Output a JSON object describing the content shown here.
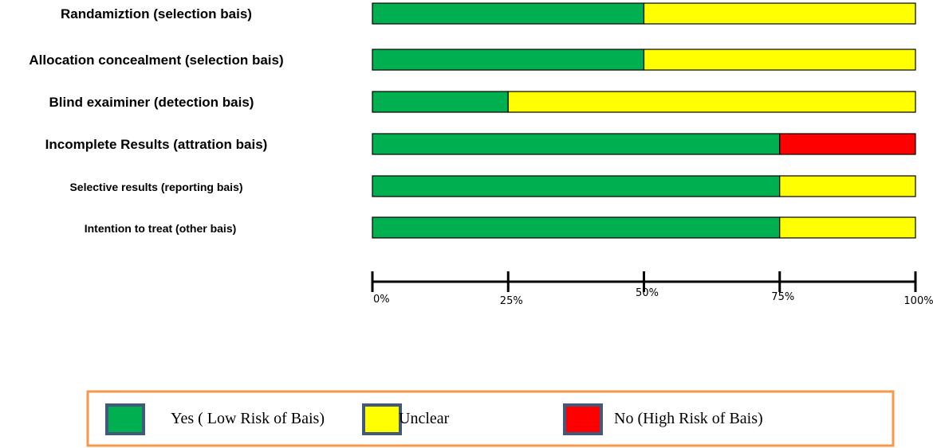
{
  "chart_data": {
    "type": "bar",
    "orientation": "horizontal",
    "stacked": true,
    "categories": [
      "Randamiztion (selection bais)",
      "Allocation concealment (selection bais)",
      "Blind exaiminer (detection bais)",
      "Incomplete Results (attration bais)",
      "Selective results (reporting bais)",
      "Intention to treat (other bais)"
    ],
    "series": [
      {
        "name": "Yes ( Low Risk of Bais)",
        "color": "#00b050",
        "values": [
          50,
          50,
          25,
          75,
          75,
          75
        ]
      },
      {
        "name": "Unclear",
        "color": "#ffff00",
        "values": [
          50,
          50,
          75,
          0,
          25,
          25
        ]
      },
      {
        "name": "No (High Risk of Bais)",
        "color": "#ff0000",
        "values": [
          0,
          0,
          0,
          25,
          0,
          0
        ]
      }
    ],
    "xlim": [
      0,
      100
    ],
    "xticks": [
      0,
      25,
      50,
      75,
      100
    ],
    "xtick_labels": [
      "0%",
      "25%",
      "50%",
      "75%",
      "100%"
    ],
    "title": "",
    "xlabel": "",
    "ylabel": "",
    "legend_position": "bottom",
    "legend_border_color": "#f59a4a",
    "legend_swatch_border_color": "#41597a",
    "grid": false
  }
}
